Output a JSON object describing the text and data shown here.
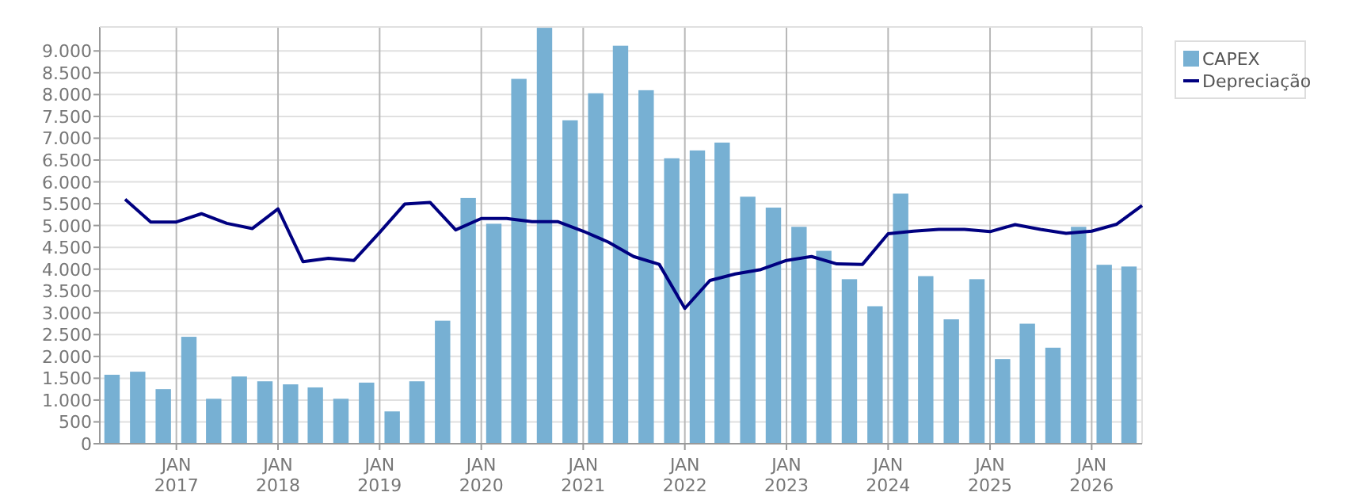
{
  "chart_data": {
    "type": "bar",
    "xlim": [
      "2016-04-01",
      "2026-07-01"
    ],
    "xticks": [
      {
        "value": "2017-01-01",
        "label": "JAN 2017"
      },
      {
        "value": "2018-01-01",
        "label": "JAN 2018"
      },
      {
        "value": "2019-01-01",
        "label": "JAN 2019"
      },
      {
        "value": "2020-01-01",
        "label": "JAN 2020"
      },
      {
        "value": "2021-01-01",
        "label": "JAN 2021"
      },
      {
        "value": "2022-01-01",
        "label": "JAN 2022"
      },
      {
        "value": "2023-01-01",
        "label": "JAN 2023"
      },
      {
        "value": "2024-01-01",
        "label": "JAN 2024"
      },
      {
        "value": "2025-01-01",
        "label": "JAN 2025"
      },
      {
        "value": "2026-01-01",
        "label": "JAN 2026"
      }
    ],
    "ylim": [
      0,
      9550
    ],
    "yticks": [
      0,
      500,
      {
        "value": 1000,
        "label": "1.000"
      },
      {
        "value": 1500,
        "label": "1.500"
      },
      {
        "value": 2000,
        "label": "2.000"
      },
      {
        "value": 2500,
        "label": "2.500"
      },
      {
        "value": 3000,
        "label": "3.000"
      },
      {
        "value": 3500,
        "label": "3.500"
      },
      {
        "value": 4000,
        "label": "4.000"
      },
      {
        "value": 4500,
        "label": "4.500"
      },
      {
        "value": 5000,
        "label": "5.000"
      },
      {
        "value": 5500,
        "label": "5.500"
      },
      {
        "value": 6000,
        "label": "6.000"
      },
      {
        "value": 6500,
        "label": "6.500"
      },
      {
        "value": 7000,
        "label": "7.000"
      },
      {
        "value": 7500,
        "label": "7.500"
      },
      {
        "value": 8000,
        "label": "8.000"
      },
      {
        "value": 8500,
        "label": "8.500"
      },
      {
        "value": 9000,
        "label": "9.000"
      }
    ],
    "grid": true,
    "legend": "top right",
    "series": [
      {
        "name": "CAPEX",
        "color": "#77b0d3",
        "x": [
          "2016-05-15",
          "2016-08-15",
          "2016-11-15",
          "2017-02-15",
          "2017-05-15",
          "2017-08-15",
          "2017-11-15",
          "2018-02-15",
          "2018-05-15",
          "2018-08-15",
          "2018-11-15",
          "2019-02-15",
          "2019-05-15",
          "2019-08-15",
          "2019-11-15",
          "2020-02-15",
          "2020-05-15",
          "2020-08-15",
          "2020-11-15",
          "2021-02-15",
          "2021-05-15",
          "2021-08-15",
          "2021-11-15",
          "2022-02-15",
          "2022-05-15",
          "2022-08-15",
          "2022-11-15",
          "2023-02-15",
          "2023-05-15",
          "2023-08-15",
          "2023-11-15",
          "2024-02-15",
          "2024-05-15",
          "2024-08-15",
          "2024-11-15",
          "2025-02-15",
          "2025-05-15",
          "2025-08-15",
          "2025-11-15",
          "2026-02-15",
          "2026-05-15"
        ],
        "values": [
          1580,
          1650,
          1250,
          2450,
          1030,
          1540,
          1430,
          1360,
          1290,
          1030,
          1400,
          740,
          1430,
          2820,
          5630,
          5040,
          8360,
          9530,
          7410,
          8030,
          9120,
          8100,
          6540,
          6720,
          6900,
          5660,
          5410,
          4970,
          4420,
          3770,
          3150,
          5730,
          3840,
          2850,
          3770,
          1940,
          2750,
          2200,
          4970,
          4100,
          4060
        ]
      },
      {
        "name": "Depreciação",
        "type": "line",
        "color": "#000080",
        "x": [
          "2016-07-01",
          "2016-10-01",
          "2017-01-01",
          "2017-04-01",
          "2017-07-01",
          "2017-10-01",
          "2018-01-01",
          "2018-04-01",
          "2018-07-01",
          "2018-10-01",
          "2019-01-01",
          "2019-04-01",
          "2019-07-01",
          "2019-10-01",
          "2020-01-01",
          "2020-04-01",
          "2020-07-01",
          "2020-10-01",
          "2021-01-01",
          "2021-04-01",
          "2021-07-01",
          "2021-10-01",
          "2022-01-01",
          "2022-04-01",
          "2022-07-01",
          "2022-10-01",
          "2023-01-01",
          "2023-04-01",
          "2023-07-01",
          "2023-10-01",
          "2024-01-01",
          "2024-04-01",
          "2024-07-01",
          "2024-10-01",
          "2025-01-01",
          "2025-04-01",
          "2025-07-01",
          "2025-10-01",
          "2026-01-01",
          "2026-04-01",
          "2026-07-01"
        ],
        "values": [
          5600,
          5080,
          5080,
          5270,
          5050,
          4930,
          5380,
          4170,
          4250,
          4200,
          4840,
          5490,
          5530,
          4900,
          5160,
          5160,
          5090,
          5090,
          4870,
          4620,
          4290,
          4110,
          3100,
          3740,
          3890,
          3990,
          4200,
          4290,
          4120,
          4110,
          4810,
          4870,
          4910,
          4910,
          4860,
          5020,
          4910,
          4820,
          4870,
          5030,
          5460
        ]
      }
    ]
  }
}
